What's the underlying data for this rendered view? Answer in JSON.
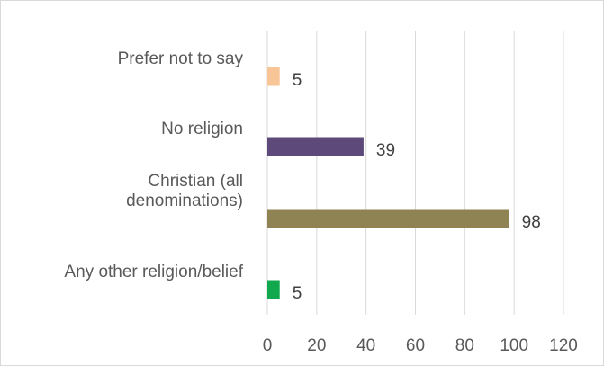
{
  "chart_data": {
    "type": "bar",
    "orientation": "horizontal",
    "categories": [
      [
        "Prefer not to say"
      ],
      [
        "No religion"
      ],
      [
        "Christian (all",
        "denominations)"
      ],
      [
        "Any other religion/belief"
      ]
    ],
    "values": [
      5,
      39,
      98,
      5
    ],
    "colors": [
      "#f8c596",
      "#5e4a7a",
      "#8f8354",
      "#12a84e"
    ],
    "xlim": [
      0,
      120
    ],
    "xticks": [
      0,
      20,
      40,
      60,
      80,
      100,
      120
    ],
    "grid": true,
    "title": "",
    "xlabel": "",
    "ylabel": ""
  }
}
